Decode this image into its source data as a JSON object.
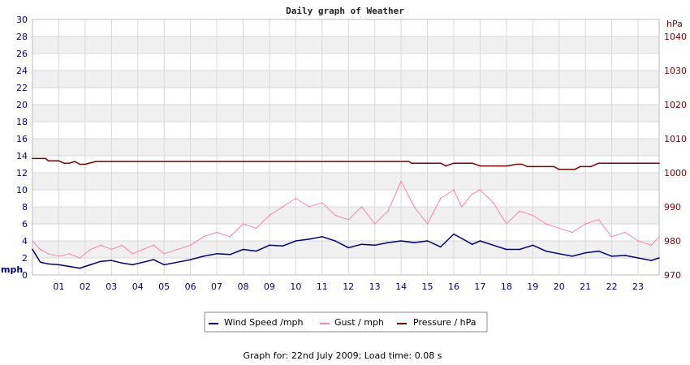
{
  "chart_data": {
    "type": "line",
    "title": "Daily graph of Weather",
    "left_unit": "mph",
    "right_unit": "hPa",
    "left_ylim": [
      0,
      30
    ],
    "left_ticks": [
      "0",
      "2",
      "4",
      "6",
      "8",
      "10",
      "12",
      "14",
      "16",
      "18",
      "20",
      "22",
      "24",
      "26",
      "28",
      "30"
    ],
    "right_ylim": [
      970,
      1045
    ],
    "right_ticks": [
      "970",
      "980",
      "990",
      "1000",
      "1010",
      "1020",
      "1030",
      "1040"
    ],
    "xlim": [
      0,
      23.8
    ],
    "x_ticks": [
      "01",
      "02",
      "03",
      "04",
      "05",
      "06",
      "07",
      "08",
      "09",
      "10",
      "11",
      "12",
      "13",
      "14",
      "15",
      "16",
      "17",
      "18",
      "19",
      "20",
      "21",
      "22",
      "23"
    ],
    "grid": true,
    "legend_position": "bottom",
    "series": [
      {
        "name": "Wind Speed /mph",
        "axis": "left",
        "color": "#000080",
        "x": [
          0,
          0.3,
          0.6,
          1,
          1.4,
          1.8,
          2.2,
          2.6,
          3,
          3.4,
          3.8,
          4.2,
          4.6,
          5,
          5.5,
          6,
          6.5,
          7,
          7.5,
          8,
          8.5,
          9,
          9.5,
          10,
          10.5,
          11,
          11.5,
          12,
          12.5,
          13,
          13.5,
          14,
          14.5,
          15,
          15.5,
          16,
          16.3,
          16.7,
          17,
          17.5,
          18,
          18.5,
          19,
          19.5,
          20,
          20.5,
          21,
          21.5,
          22,
          22.5,
          23,
          23.5,
          23.8
        ],
        "y": [
          3,
          1.5,
          1.3,
          1.2,
          1,
          0.8,
          1.2,
          1.6,
          1.7,
          1.4,
          1.2,
          1.5,
          1.8,
          1.2,
          1.5,
          1.8,
          2.2,
          2.5,
          2.4,
          3.0,
          2.8,
          3.5,
          3.4,
          4.0,
          4.2,
          4.5,
          4.0,
          3.2,
          3.6,
          3.5,
          3.8,
          4.0,
          3.8,
          4.0,
          3.3,
          4.8,
          4.3,
          3.6,
          4.0,
          3.5,
          3.0,
          3.0,
          3.5,
          2.8,
          2.5,
          2.2,
          2.6,
          2.8,
          2.2,
          2.3,
          2.0,
          1.7,
          2.0
        ]
      },
      {
        "name": "Gust / mph",
        "axis": "left",
        "color": "#ff80b0",
        "x": [
          0,
          0.3,
          0.6,
          1,
          1.4,
          1.8,
          2.2,
          2.6,
          3,
          3.4,
          3.8,
          4.2,
          4.6,
          5,
          5.5,
          6,
          6.5,
          7,
          7.5,
          8,
          8.5,
          9,
          9.5,
          10,
          10.5,
          11,
          11.5,
          12,
          12.5,
          13,
          13.5,
          14,
          14.5,
          15,
          15.5,
          16,
          16.3,
          16.7,
          17,
          17.5,
          18,
          18.5,
          19,
          19.5,
          20,
          20.5,
          21,
          21.5,
          22,
          22.5,
          23,
          23.5,
          23.8
        ],
        "y": [
          4.0,
          3.0,
          2.5,
          2.2,
          2.5,
          2.0,
          3.0,
          3.5,
          3.0,
          3.5,
          2.5,
          3.0,
          3.5,
          2.5,
          3.0,
          3.5,
          4.5,
          5.0,
          4.5,
          6.0,
          5.5,
          7.0,
          8.0,
          9.0,
          8.0,
          8.5,
          7.0,
          6.5,
          8.0,
          6.0,
          7.5,
          11.0,
          8.0,
          6.0,
          9.0,
          10.0,
          8.0,
          9.5,
          10.0,
          8.5,
          6.0,
          7.5,
          7.0,
          6.0,
          5.5,
          5.0,
          6.0,
          6.5,
          4.5,
          5.0,
          4.0,
          3.5,
          4.5
        ]
      },
      {
        "name": "Pressure / hPa",
        "axis": "right",
        "color": "#800000",
        "x": [
          0,
          0.5,
          0.6,
          1,
          1.2,
          1.4,
          1.6,
          1.8,
          2,
          2.4,
          2.6,
          3,
          14.3,
          14.4,
          15,
          15.5,
          15.7,
          16,
          16.3,
          16.7,
          17,
          17.5,
          18,
          18.4,
          18.6,
          18.8,
          19,
          19.5,
          19.8,
          20,
          20.6,
          20.8,
          21.2,
          21.5,
          23.8
        ],
        "y": [
          1004.2,
          1004.2,
          1003.5,
          1003.5,
          1002.8,
          1002.8,
          1003.3,
          1002.5,
          1002.5,
          1003.3,
          1003.3,
          1003.3,
          1003.3,
          1002.8,
          1002.8,
          1002.8,
          1002,
          1002.8,
          1002.8,
          1002.8,
          1002,
          1002,
          1002,
          1002.5,
          1002.5,
          1001.8,
          1001.8,
          1001.8,
          1001.8,
          1001,
          1001,
          1001.8,
          1001.8,
          1002.8,
          1002.8
        ]
      }
    ]
  },
  "legend": {
    "items": [
      {
        "label": "Wind Speed /mph",
        "color": "#000080"
      },
      {
        "label": "Gust / mph",
        "color": "#ff80b0"
      },
      {
        "label": "Pressure / hPa",
        "color": "#800000"
      }
    ]
  },
  "footer": {
    "text": "Graph for: 22nd July 2009; Load time: 0.08 s"
  }
}
